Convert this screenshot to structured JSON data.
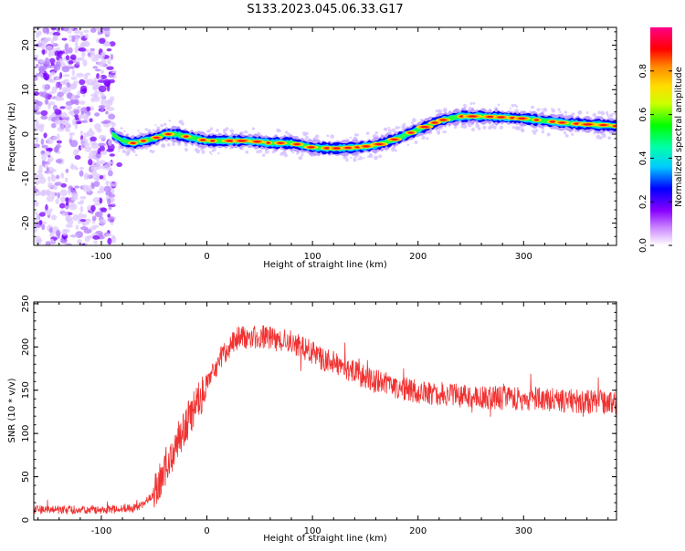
{
  "title": "S133.2023.045.06.33.G17",
  "chart_data": [
    {
      "type": "heatmap",
      "xlabel": "Height of straight line (km)",
      "ylabel": "Frequency (Hz)",
      "xlim": [
        -164,
        388
      ],
      "ylim": [
        -25,
        24
      ],
      "xticks": [
        -100,
        0,
        100,
        200,
        300
      ],
      "yticks": [
        -20,
        -10,
        0,
        10,
        20
      ],
      "colorbar": {
        "label": "Normalized spectral amplitude",
        "range": [
          0.0,
          1.0
        ],
        "ticks": [
          "0.0",
          "0.2",
          "0.4",
          "0.6",
          "0.8"
        ],
        "tick_values": [
          0.0,
          0.2,
          0.4,
          0.6,
          0.8
        ],
        "colors": [
          "#ffffff",
          "#8800ff",
          "#0000ff",
          "#00ffff",
          "#00ff00",
          "#ffff00",
          "#ff8800",
          "#ff0000",
          "#ff0088"
        ]
      },
      "ridge": {
        "x": [
          -90,
          -80,
          -70,
          -60,
          -50,
          -40,
          -30,
          -20,
          -10,
          0,
          20,
          40,
          60,
          80,
          100,
          120,
          140,
          160,
          180,
          200,
          220,
          240,
          260,
          280,
          300,
          320,
          340,
          360,
          380,
          388
        ],
        "y": [
          0,
          -1.5,
          -2,
          -1.5,
          -1,
          0,
          0,
          -0.5,
          -1,
          -1.5,
          -1.5,
          -1.5,
          -2,
          -2,
          -3,
          -3.2,
          -3,
          -2.5,
          -1,
          1,
          3,
          4,
          4,
          3.8,
          3.5,
          3,
          2.5,
          2.2,
          2,
          1.8
        ]
      }
    },
    {
      "type": "line",
      "xlabel": "Height of straight line (km)",
      "ylabel": "SNR (10 * v/v)",
      "xlim": [
        -164,
        388
      ],
      "ylim": [
        0,
        252
      ],
      "xticks": [
        -100,
        0,
        100,
        200,
        300
      ],
      "yticks": [
        0,
        50,
        100,
        150,
        200,
        250
      ],
      "series": [
        {
          "color": "#f03232",
          "x": [
            -164,
            -140,
            -120,
            -100,
            -80,
            -70,
            -60,
            -50,
            -40,
            -30,
            -20,
            -10,
            0,
            10,
            20,
            30,
            40,
            50,
            60,
            70,
            80,
            90,
            100,
            110,
            120,
            140,
            160,
            180,
            200,
            220,
            240,
            260,
            280,
            300,
            320,
            340,
            360,
            388
          ],
          "y": [
            12,
            12,
            12,
            12,
            13,
            14,
            18,
            30,
            55,
            85,
            110,
            135,
            155,
            180,
            200,
            210,
            212,
            212,
            210,
            208,
            206,
            200,
            193,
            186,
            182,
            170,
            160,
            154,
            148,
            146,
            143,
            142,
            141,
            140,
            140,
            138,
            137,
            135
          ]
        }
      ]
    }
  ]
}
